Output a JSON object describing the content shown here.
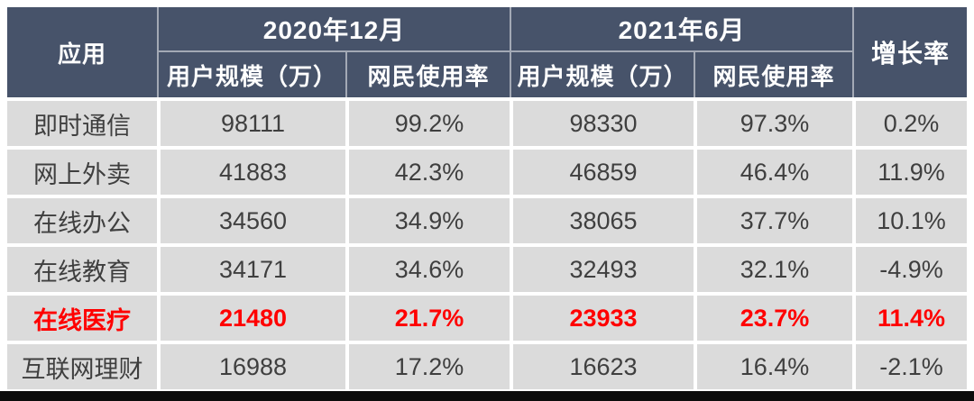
{
  "colors": {
    "header_bg": "#47536A",
    "header_text": "#FFFFFF",
    "cell_bg": "#DBDBDB",
    "cell_text": "#3F3F3F",
    "highlight_text": "#FF0000",
    "bottom_bar": "#0C0C0C",
    "gap": "#FFFFFF"
  },
  "table": {
    "header": {
      "app": "应用",
      "group_2020": "2020年12月",
      "group_2021": "2021年6月",
      "growth": "增长率",
      "sub_user_scale_2020": "用户规模（万）",
      "sub_usage_rate_2020": "网民使用率",
      "sub_user_scale_2021": "用户规模（万）",
      "sub_usage_rate_2021": "网民使用率"
    },
    "rows": [
      {
        "app": "即时通信",
        "user_2020": "98111",
        "rate_2020": "99.2%",
        "user_2021": "98330",
        "rate_2021": "97.3%",
        "growth": "0.2%",
        "highlight": false
      },
      {
        "app": "网上外卖",
        "user_2020": "41883",
        "rate_2020": "42.3%",
        "user_2021": "46859",
        "rate_2021": "46.4%",
        "growth": "11.9%",
        "highlight": false
      },
      {
        "app": "在线办公",
        "user_2020": "34560",
        "rate_2020": "34.9%",
        "user_2021": "38065",
        "rate_2021": "37.7%",
        "growth": "10.1%",
        "highlight": false
      },
      {
        "app": "在线教育",
        "user_2020": "34171",
        "rate_2020": "34.6%",
        "user_2021": "32493",
        "rate_2021": "32.1%",
        "growth": "-4.9%",
        "highlight": false
      },
      {
        "app": "在线医疗",
        "user_2020": "21480",
        "rate_2020": "21.7%",
        "user_2021": "23933",
        "rate_2021": "23.7%",
        "growth": "11.4%",
        "highlight": true
      },
      {
        "app": "互联网理财",
        "user_2020": "16988",
        "rate_2020": "17.2%",
        "user_2021": "16623",
        "rate_2021": "16.4%",
        "growth": "-2.1%",
        "highlight": false
      }
    ]
  },
  "chart_data": {
    "type": "table",
    "title": "",
    "columns": [
      "应用",
      "2020年12月 用户规模（万）",
      "2020年12月 网民使用率",
      "2021年6月 用户规模（万）",
      "2021年6月 网民使用率",
      "增长率"
    ],
    "rows": [
      [
        "即时通信",
        98111,
        "99.2%",
        98330,
        "97.3%",
        "0.2%"
      ],
      [
        "网上外卖",
        41883,
        "42.3%",
        46859,
        "46.4%",
        "11.9%"
      ],
      [
        "在线办公",
        34560,
        "34.9%",
        38065,
        "37.7%",
        "10.1%"
      ],
      [
        "在线教育",
        34171,
        "34.6%",
        32493,
        "32.1%",
        "-4.9%"
      ],
      [
        "在线医疗",
        21480,
        "21.7%",
        23933,
        "23.7%",
        "11.4%"
      ],
      [
        "互联网理财",
        16988,
        "17.2%",
        16623,
        "16.4%",
        "-2.1%"
      ]
    ],
    "highlighted_row": "在线医疗"
  }
}
